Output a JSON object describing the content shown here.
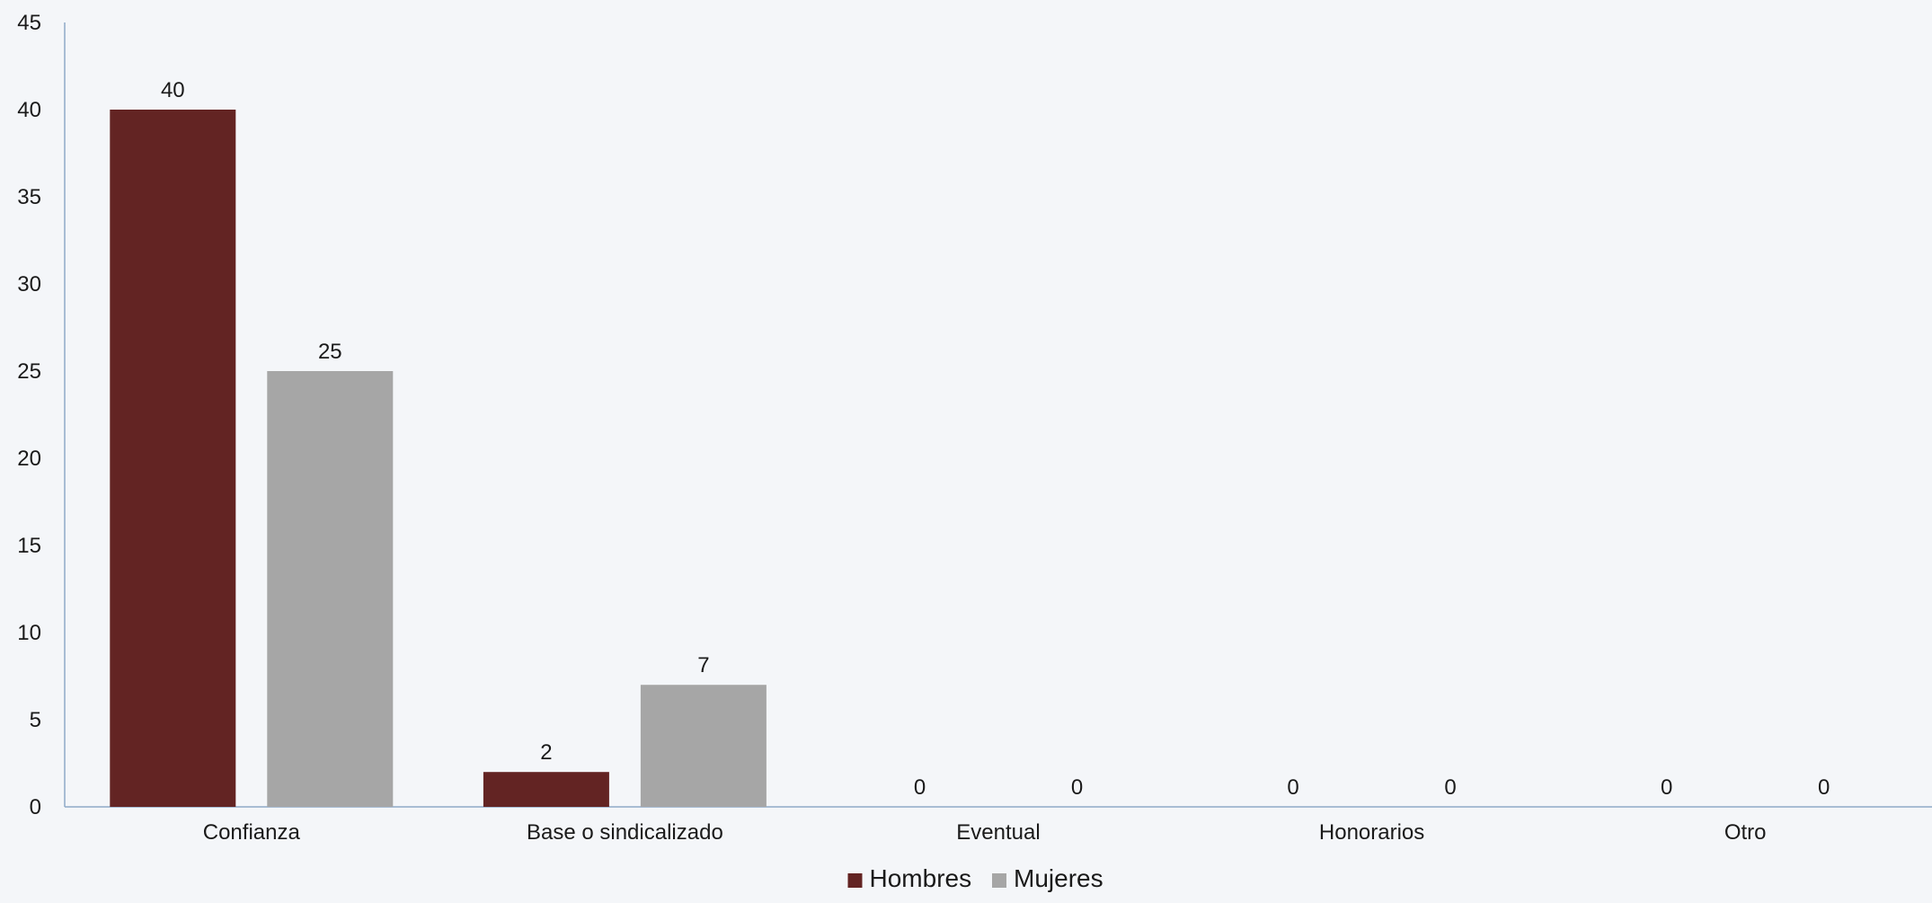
{
  "chart_data": {
    "type": "bar",
    "categories": [
      "Confianza",
      "Base o sindicalizado",
      "Eventual",
      "Honorarios",
      "Otro"
    ],
    "series": [
      {
        "name": "Hombres",
        "values": [
          40,
          2,
          0,
          0,
          0
        ],
        "color": "#632423"
      },
      {
        "name": "Mujeres",
        "values": [
          25,
          7,
          0,
          0,
          0
        ],
        "color": "#a6a6a6"
      }
    ],
    "ylim": [
      0,
      45
    ],
    "yticks": [
      0,
      5,
      10,
      15,
      20,
      25,
      30,
      35,
      40,
      45
    ],
    "data_labels": true,
    "grid": false,
    "legend": "bottom-center",
    "axis_color": "#8eaac8",
    "background": "#f4f6f9"
  }
}
